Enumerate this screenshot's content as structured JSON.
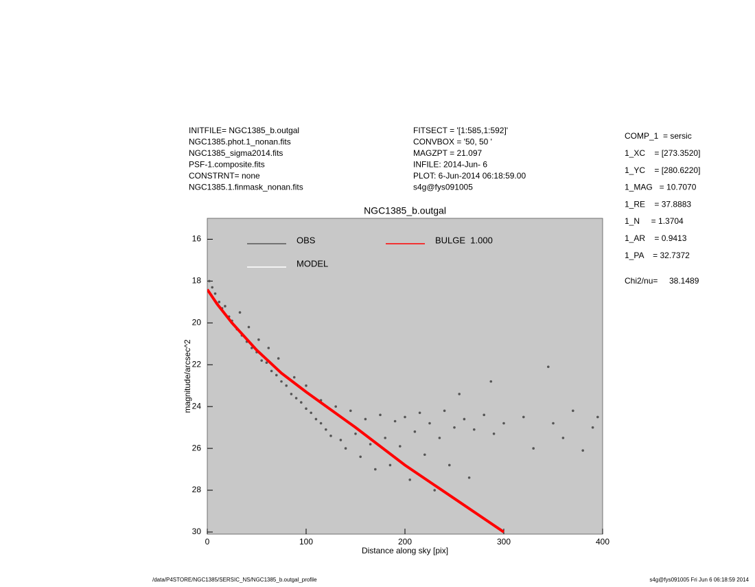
{
  "header": {
    "left": [
      "INITFILE= NGC1385_b.outgal",
      "NGC1385.phot.1_nonan.fits",
      "NGC1385_sigma2014.fits",
      "PSF-1.composite.fits",
      "CONSTRNT= none",
      "NGC1385.1.finmask_nonan.fits"
    ],
    "middle": [
      "FITSECT = '[1:585,1:592]'",
      "CONVBOX = '50, 50  '",
      "MAGZPT  =              21.097",
      "INFILE: 2014-Jun- 6",
      "PLOT:  6-Jun-2014 06:18:59.00",
      "s4g@fys091005"
    ],
    "params": [
      "COMP_1  = sersic",
      "1_XC    = [273.3520]",
      "1_YC    = [280.6220]",
      "1_MAG   = 10.7070",
      "1_RE    = 37.8883",
      "1_N     = 1.3704",
      "1_AR    = 0.9413",
      "1_PA    = 32.7372"
    ],
    "chi2_label": "Chi2/nu=",
    "chi2_value": "38.1489"
  },
  "footer": {
    "left": "/data/P4STORE/NGC1385/SERSIC_NS/NGC1385_b.outgal_profile",
    "right": "s4g@fys091005  Fri Jun  6 06:18:59 2014"
  },
  "chart_data": {
    "type": "scatter",
    "title": "NGC1385_b.outgal",
    "xlabel": "Distance along sky [pix]",
    "ylabel": "magnitude/arcsec^2",
    "xlim": [
      0,
      400
    ],
    "ylim": [
      30.1,
      15
    ],
    "xticks": [
      0,
      100,
      200,
      300,
      400
    ],
    "yticks": [
      16,
      18,
      20,
      22,
      24,
      26,
      28,
      30
    ],
    "legend": "upper left",
    "background": "#c8c8c8",
    "series": [
      {
        "name": "OBS",
        "color": "#555555",
        "mode": "points",
        "x": [
          2,
          5,
          8,
          12,
          15,
          18,
          22,
          25,
          30,
          33,
          35,
          40,
          42,
          45,
          50,
          52,
          55,
          60,
          62,
          65,
          70,
          72,
          75,
          80,
          85,
          88,
          90,
          95,
          100,
          100,
          105,
          110,
          115,
          115,
          120,
          125,
          130,
          135,
          140,
          145,
          150,
          155,
          160,
          165,
          170,
          175,
          180,
          185,
          190,
          195,
          200,
          205,
          210,
          215,
          220,
          225,
          230,
          235,
          240,
          245,
          250,
          255,
          260,
          265,
          270,
          280,
          287,
          290,
          300,
          320,
          330,
          345,
          350,
          360,
          370,
          380,
          390,
          395
        ],
        "values": [
          18.0,
          18.3,
          18.6,
          19.0,
          19.3,
          19.2,
          19.7,
          19.9,
          20.3,
          19.5,
          20.6,
          20.9,
          20.2,
          21.2,
          21.4,
          20.8,
          21.8,
          21.9,
          21.2,
          22.3,
          22.5,
          21.7,
          22.8,
          23.0,
          23.4,
          22.6,
          23.6,
          23.8,
          24.1,
          23.0,
          24.3,
          24.6,
          24.8,
          23.7,
          25.1,
          25.4,
          24.0,
          25.6,
          26.0,
          24.2,
          25.3,
          26.4,
          24.6,
          25.8,
          27.0,
          24.4,
          25.5,
          26.8,
          24.7,
          25.9,
          24.5,
          27.5,
          25.2,
          24.3,
          26.3,
          24.8,
          28.0,
          25.5,
          24.2,
          26.8,
          25.0,
          23.4,
          24.6,
          27.4,
          25.1,
          24.4,
          22.8,
          25.3,
          24.8,
          24.5,
          26.0,
          22.1,
          24.8,
          25.5,
          24.2,
          26.1,
          25.0,
          24.5
        ]
      },
      {
        "name": "MODEL",
        "color": "#ffffff",
        "mode": "line",
        "x": [
          0,
          10,
          25,
          50,
          75,
          100,
          150,
          200,
          250,
          300
        ],
        "values": [
          18.4,
          19.1,
          20.0,
          21.3,
          22.4,
          23.3,
          25.0,
          26.8,
          28.4,
          30.0
        ]
      },
      {
        "name": "BULGE  1.000",
        "color": "#ff0000",
        "mode": "line",
        "x": [
          0,
          10,
          25,
          50,
          75,
          100,
          150,
          200,
          250,
          300
        ],
        "values": [
          18.4,
          19.1,
          20.0,
          21.3,
          22.4,
          23.3,
          25.0,
          26.8,
          28.4,
          30.0
        ]
      }
    ]
  }
}
